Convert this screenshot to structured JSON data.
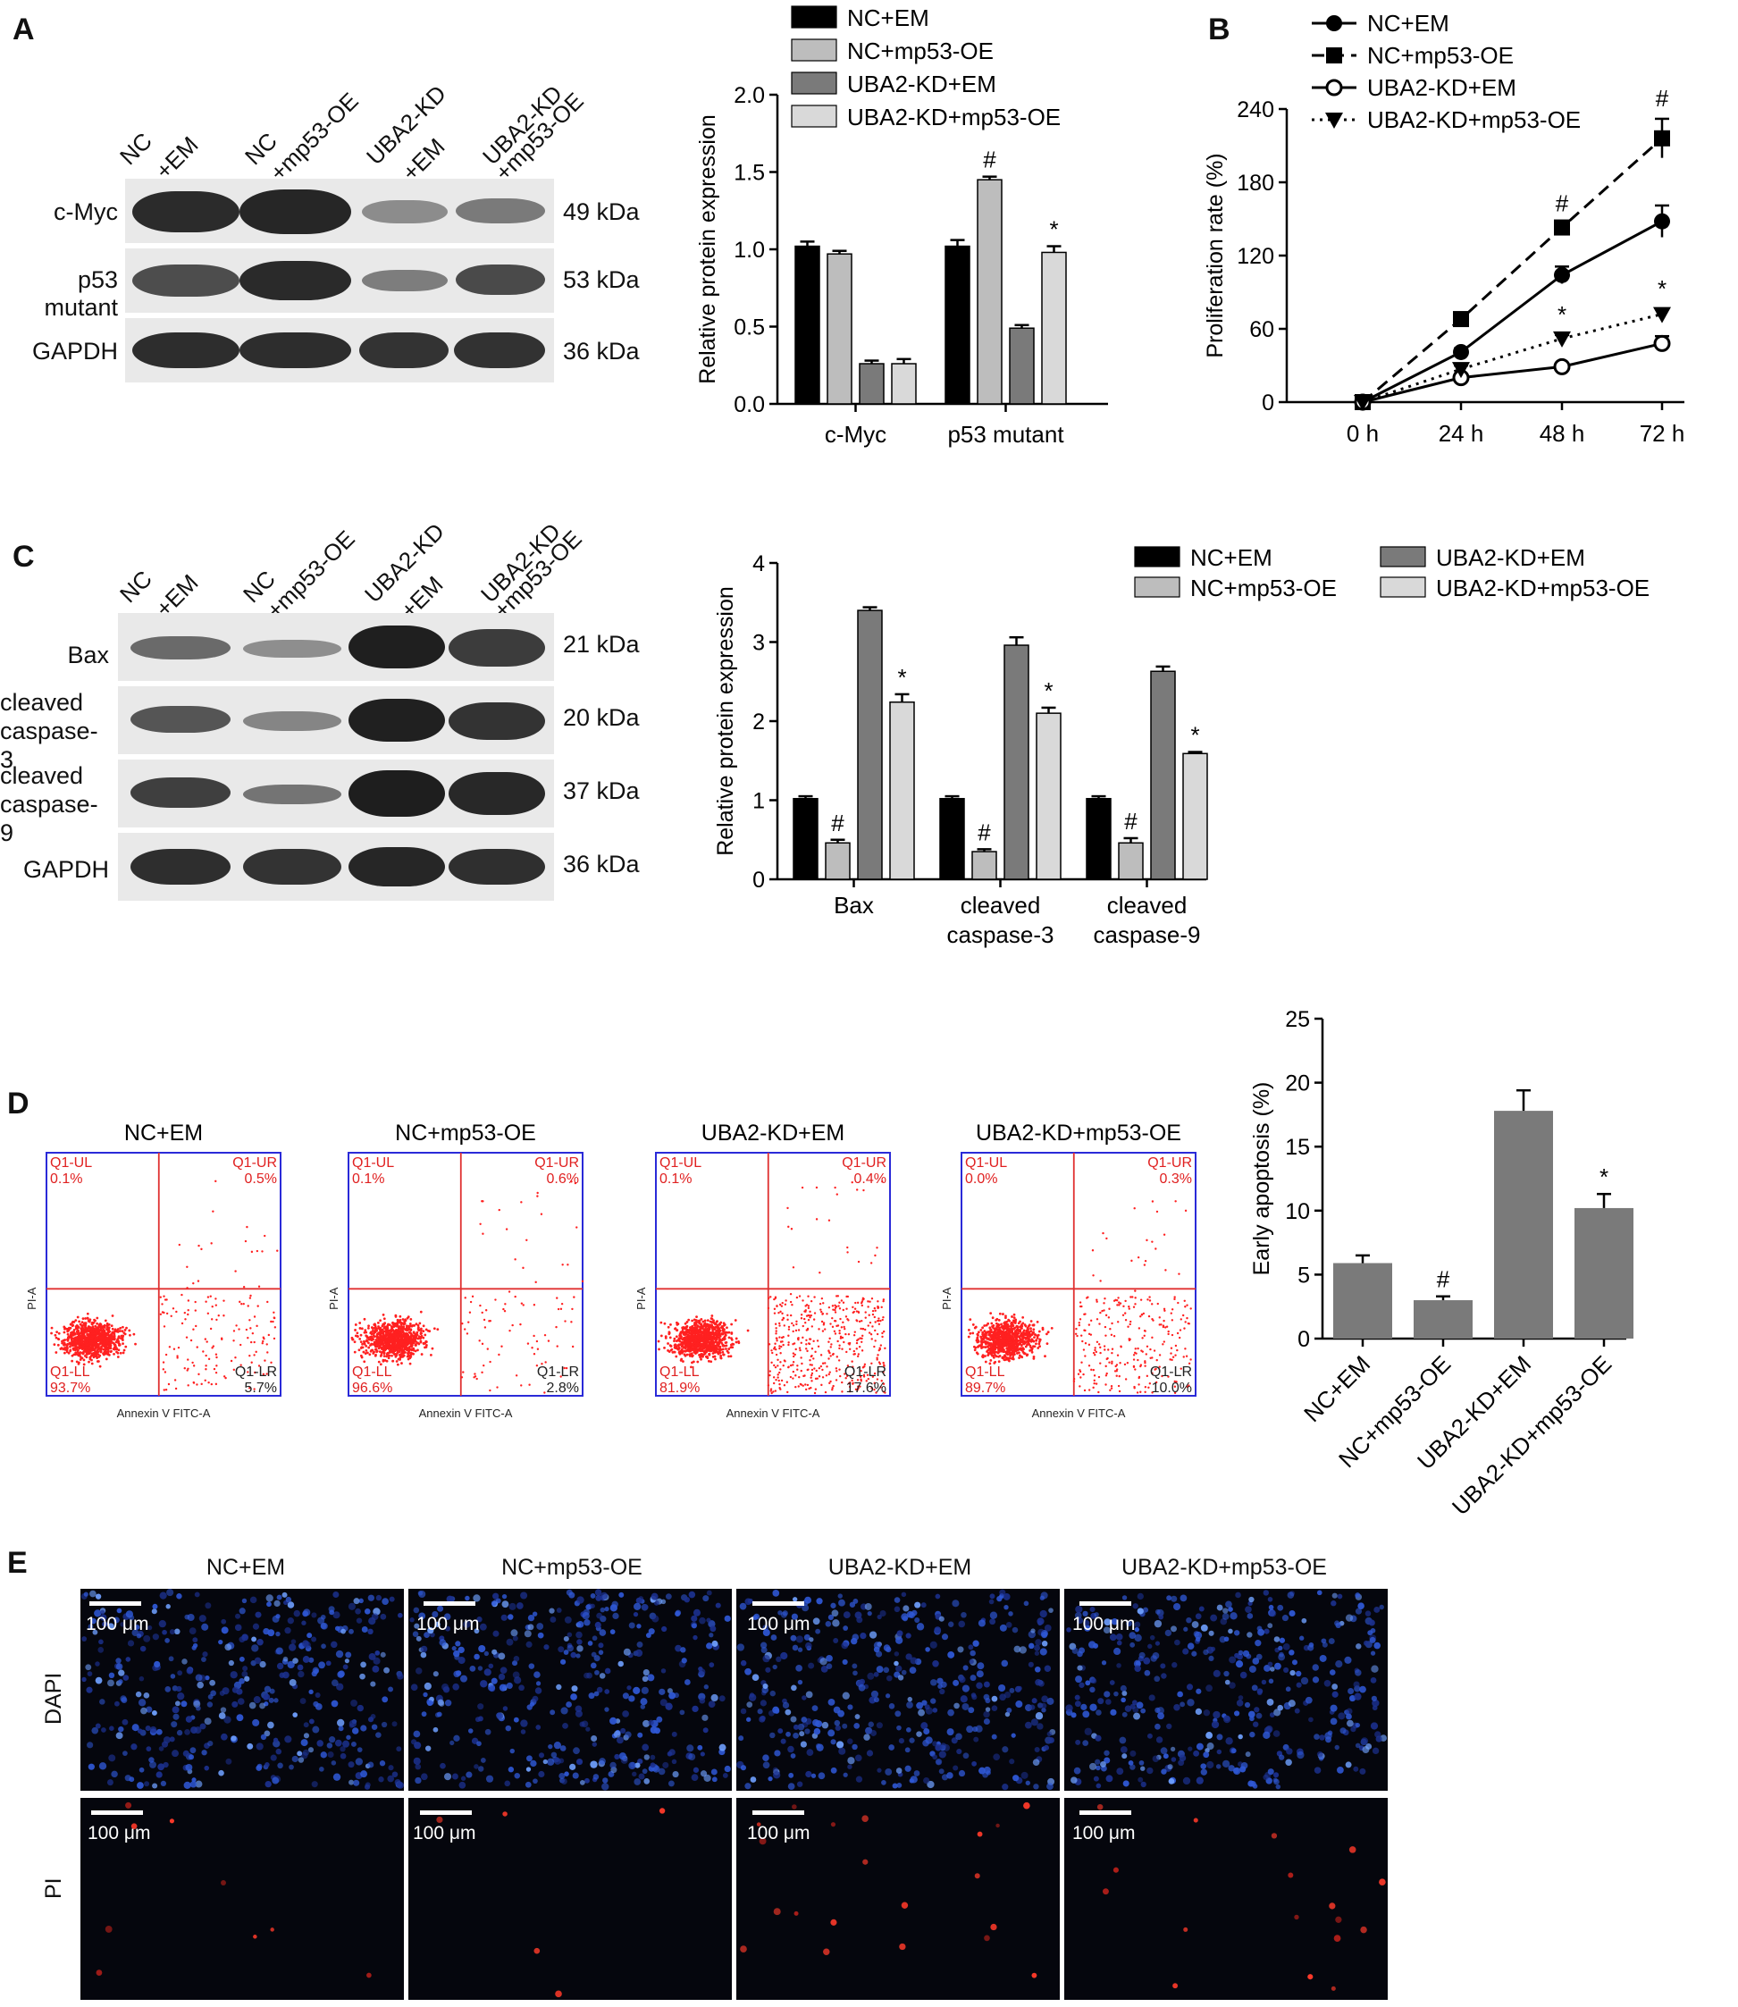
{
  "panels": {
    "A": "A",
    "B": "B",
    "C": "C",
    "D": "D",
    "E": "E"
  },
  "colors": {
    "nc_em": "#000000",
    "nc_mp53": "#bdbdbd",
    "kd_em": "#7a7a7a",
    "kd_mp53": "#d9d9d9",
    "flow_dot": "#ff2020",
    "flow_axis": "#2a2ad8",
    "dapi": "#2a5cff",
    "pi": "#ff2a2a"
  },
  "panelA": {
    "lanes": [
      [
        "NC",
        "+EM"
      ],
      [
        "NC",
        "+mp53-OE"
      ],
      [
        "UBA2-KD",
        "+EM"
      ],
      [
        "UBA2-KD",
        "+mp53-OE"
      ]
    ],
    "rows": [
      {
        "label": "c-Myc",
        "kda": "49 kDa"
      },
      {
        "label": "p53 mutant",
        "kda": "53 kDa"
      },
      {
        "label": "GAPDH",
        "kda": "36 kDa"
      }
    ]
  },
  "panelC": {
    "lanes": [
      [
        "NC",
        "+EM"
      ],
      [
        "NC",
        "+mp53-OE"
      ],
      [
        "UBA2-KD",
        "+EM"
      ],
      [
        "UBA2-KD",
        "+mp53-OE"
      ]
    ],
    "rows": [
      {
        "label": "Bax",
        "kda": "21 kDa"
      },
      {
        "label": "cleaved caspase-3",
        "kda": "20 kDa"
      },
      {
        "label": "cleaved caspase-9",
        "kda": "37 kDa"
      },
      {
        "label": "GAPDH",
        "kda": "36 kDa"
      }
    ]
  },
  "chart_data": [
    {
      "id": "A-bar",
      "type": "bar",
      "categories": [
        "c-Myc",
        "p53 mutant"
      ],
      "ylabel": "Relative protein expression",
      "ylim": [
        0,
        2.0
      ],
      "yticks": [
        "0.0",
        "0.5",
        "1.0",
        "1.5",
        "2.0"
      ],
      "legend": [
        "NC+EM",
        "NC+mp53-OE",
        "UBA2-KD+EM",
        "UBA2-KD+mp53-OE"
      ],
      "series": [
        {
          "name": "NC+EM",
          "values": [
            1.02,
            1.02
          ],
          "err": [
            0.03,
            0.04
          ]
        },
        {
          "name": "NC+mp53-OE",
          "values": [
            0.97,
            1.45
          ],
          "err": [
            0.02,
            0.02
          ]
        },
        {
          "name": "UBA2-KD+EM",
          "values": [
            0.26,
            0.49
          ],
          "err": [
            0.02,
            0.02
          ]
        },
        {
          "name": "UBA2-KD+mp53-OE",
          "values": [
            0.26,
            0.98
          ],
          "err": [
            0.03,
            0.04
          ]
        }
      ],
      "annotations": [
        {
          "series": 1,
          "cat": 1,
          "text": "#"
        },
        {
          "series": 3,
          "cat": 1,
          "text": "*"
        }
      ]
    },
    {
      "id": "B-line",
      "type": "line",
      "categories": [
        "0 h",
        "24 h",
        "48 h",
        "72 h"
      ],
      "ylabel": "Proliferation rate (%)",
      "ylim": [
        0,
        240
      ],
      "yticks": [
        "0",
        "60",
        "120",
        "180",
        "240"
      ],
      "legend": [
        "NC+EM",
        "NC+mp53-OE",
        "UBA2-KD+EM",
        "UBA2-KD+mp53-OE"
      ],
      "series": [
        {
          "name": "NC+EM",
          "values": [
            0,
            41,
            104,
            148
          ],
          "err": [
            0,
            3,
            7,
            13
          ],
          "marker": "circle-filled",
          "dash": ""
        },
        {
          "name": "NC+mp53-OE",
          "values": [
            0,
            68,
            143,
            216
          ],
          "err": [
            0,
            2,
            3,
            16
          ],
          "marker": "square",
          "dash": "14,8"
        },
        {
          "name": "UBA2-KD+EM",
          "values": [
            0,
            20,
            29,
            48
          ],
          "err": [
            0,
            3,
            2,
            6
          ],
          "marker": "circle-open",
          "dash": ""
        },
        {
          "name": "UBA2-KD+mp53-OE",
          "values": [
            0,
            27,
            52,
            72
          ],
          "err": [
            0,
            3,
            3,
            4
          ],
          "marker": "triangle-down",
          "dash": "3,6"
        }
      ],
      "annotations": [
        {
          "series": 1,
          "cat": 2,
          "text": "#"
        },
        {
          "series": 1,
          "cat": 3,
          "text": "#"
        },
        {
          "series": 3,
          "cat": 2,
          "text": "*"
        },
        {
          "series": 3,
          "cat": 3,
          "text": "*"
        }
      ]
    },
    {
      "id": "C-bar",
      "type": "bar",
      "categories": [
        [
          "Bax"
        ],
        [
          "cleaved",
          "caspase-3"
        ],
        [
          "cleaved",
          "caspase-9"
        ]
      ],
      "ylabel": "Relative protein expression",
      "ylim": [
        0,
        4
      ],
      "yticks": [
        "0",
        "1",
        "2",
        "3",
        "4"
      ],
      "legend": [
        "NC+EM",
        "NC+mp53-OE",
        "UBA2-KD+EM",
        "UBA2-KD+mp53-OE"
      ],
      "series": [
        {
          "name": "NC+EM",
          "values": [
            1.02,
            1.02,
            1.02
          ],
          "err": [
            0.03,
            0.03,
            0.03
          ]
        },
        {
          "name": "NC+mp53-OE",
          "values": [
            0.46,
            0.35,
            0.46
          ],
          "err": [
            0.04,
            0.03,
            0.06
          ]
        },
        {
          "name": "UBA2-KD+EM",
          "values": [
            3.4,
            2.96,
            2.63
          ],
          "err": [
            0.04,
            0.1,
            0.06
          ]
        },
        {
          "name": "UBA2-KD+mp53-OE",
          "values": [
            2.24,
            2.1,
            1.59
          ],
          "err": [
            0.1,
            0.07,
            0.02
          ]
        }
      ],
      "annotations": [
        {
          "series": 1,
          "cat": 0,
          "text": "#"
        },
        {
          "series": 1,
          "cat": 1,
          "text": "#"
        },
        {
          "series": 1,
          "cat": 2,
          "text": "#"
        },
        {
          "series": 3,
          "cat": 0,
          "text": "*"
        },
        {
          "series": 3,
          "cat": 1,
          "text": "*"
        },
        {
          "series": 3,
          "cat": 2,
          "text": "*"
        }
      ]
    },
    {
      "id": "D-bar",
      "type": "bar",
      "categories": [
        "NC+EM",
        "NC+mp53-OE",
        "UBA2-KD+EM",
        "UBA2-KD+mp53-OE"
      ],
      "ylabel": "Early apoptosis (%)",
      "ylim": [
        0,
        25
      ],
      "yticks": [
        "0",
        "5",
        "10",
        "15",
        "20",
        "25"
      ],
      "values": [
        5.9,
        3.0,
        17.8,
        10.2
      ],
      "err": [
        0.6,
        0.3,
        1.6,
        1.1
      ],
      "annotations": [
        {
          "cat": 1,
          "text": "#"
        },
        {
          "cat": 3,
          "text": "*"
        }
      ]
    },
    {
      "id": "D-flow",
      "type": "scatter",
      "xlabel": "Annexin V FITC-A",
      "ylabel": "PI-A",
      "plots": [
        {
          "title": "NC+EM",
          "ul": [
            "Q1-UL",
            "0.1%"
          ],
          "ur": [
            "Q1-UR",
            "0.5%"
          ],
          "ll": [
            "Q1-LL",
            "93.7%"
          ],
          "lr": [
            "Q1-LR",
            "5.7%"
          ]
        },
        {
          "title": "NC+mp53-OE",
          "ul": [
            "Q1-UL",
            "0.1%"
          ],
          "ur": [
            "Q1-UR",
            "0.6%"
          ],
          "ll": [
            "Q1-LL",
            "96.6%"
          ],
          "lr": [
            "Q1-LR",
            "2.8%"
          ]
        },
        {
          "title": "UBA2-KD+EM",
          "ul": [
            "Q1-UL",
            "0.1%"
          ],
          "ur": [
            "Q1-UR",
            "0.4%"
          ],
          "ll": [
            "Q1-LL",
            "81.9%"
          ],
          "lr": [
            "Q1-LR",
            "17.6%"
          ]
        },
        {
          "title": "UBA2-KD+mp53-OE",
          "ul": [
            "Q1-UL",
            "0.0%"
          ],
          "ur": [
            "Q1-UR",
            "0.3%"
          ],
          "ll": [
            "Q1-LL",
            "89.7%"
          ],
          "lr": [
            "Q1-LR",
            "10.0%"
          ]
        }
      ]
    }
  ],
  "panelE": {
    "titles": [
      "NC+EM",
      "NC+mp53-OE",
      "UBA2-KD+EM",
      "UBA2-KD+mp53-OE"
    ],
    "rows": [
      "DAPI",
      "PI"
    ],
    "scale": "100 μm"
  }
}
